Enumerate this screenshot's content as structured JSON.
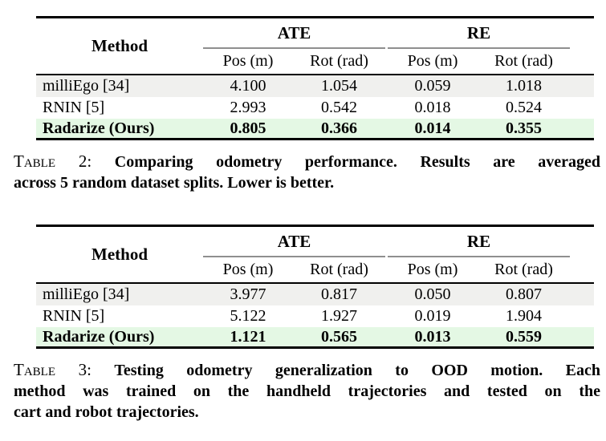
{
  "colors": {
    "page_background": "#ffffff",
    "row_gray": "#f0f0ee",
    "row_green_highlight": "#e4f8e4",
    "rule_black": "#000000",
    "cmidrule_gray": "#8f8f8f"
  },
  "tables": [
    {
      "headers": {
        "method": "Method",
        "groups": [
          {
            "label": "ATE"
          },
          {
            "label": "RE"
          }
        ],
        "subheaders": [
          "Pos (m)",
          "Rot (rad)",
          "Pos (m)",
          "Rot (rad)"
        ]
      },
      "rows": [
        {
          "method": "milliEgo [34]",
          "values": [
            "4.100",
            "1.054",
            "0.059",
            "1.018"
          ],
          "highlight": "gray"
        },
        {
          "method": "RNIN [5]",
          "values": [
            "2.993",
            "0.542",
            "0.018",
            "0.524"
          ],
          "highlight": "none"
        },
        {
          "method": "Radarize (Ours)",
          "values": [
            "0.805",
            "0.366",
            "0.014",
            "0.355"
          ],
          "highlight": "green"
        }
      ],
      "caption": {
        "label": "Table 2:",
        "lines": [
          "Comparing odometry performance. Results are averaged",
          "across 5 random dataset splits. Lower is better."
        ]
      }
    },
    {
      "headers": {
        "method": "Method",
        "groups": [
          {
            "label": "ATE"
          },
          {
            "label": "RE"
          }
        ],
        "subheaders": [
          "Pos (m)",
          "Rot (rad)",
          "Pos (m)",
          "Rot (rad)"
        ]
      },
      "rows": [
        {
          "method": "milliEgo [34]",
          "values": [
            "3.977",
            "0.817",
            "0.050",
            "0.807"
          ],
          "highlight": "gray"
        },
        {
          "method": "RNIN [5]",
          "values": [
            "5.122",
            "1.927",
            "0.019",
            "1.904"
          ],
          "highlight": "none"
        },
        {
          "method": "Radarize (Ours)",
          "values": [
            "1.121",
            "0.565",
            "0.013",
            "0.559"
          ],
          "highlight": "green"
        }
      ],
      "caption": {
        "label": "Table 3:",
        "lines": [
          "Testing odometry generalization to OOD motion. Each",
          "method was trained on the handheld trajectories and tested on the",
          "cart and robot trajectories."
        ]
      }
    }
  ]
}
